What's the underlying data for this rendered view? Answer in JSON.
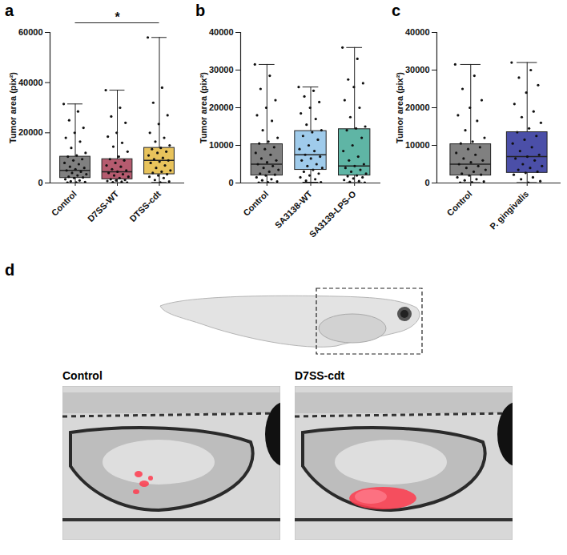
{
  "chart_data": [
    {
      "type": "box",
      "panel": "a",
      "y_label": "Tumor area (pix²)",
      "categories": [
        "Control",
        "D7SS-WT",
        "DTSS-cdt"
      ],
      "colors": [
        "#808080",
        "#b55b6f",
        "#e8c35c"
      ],
      "box": [
        {
          "min": 100,
          "q1": 2000,
          "median": 5000,
          "q3": 10500,
          "max": 31500
        },
        {
          "min": 100,
          "q1": 1500,
          "median": 4500,
          "q3": 9500,
          "max": 37000
        },
        {
          "min": 200,
          "q1": 3500,
          "median": 9000,
          "q3": 14000,
          "max": 58000
        }
      ],
      "values": [
        [
          31500,
          28500,
          25000,
          22000,
          20000,
          18000,
          16500,
          14000,
          12000,
          11000,
          10500,
          9500,
          9000,
          8000,
          7500,
          6500,
          6000,
          5500,
          5000,
          4500,
          4000,
          3500,
          3000,
          2500,
          2200,
          2000,
          1500,
          1000,
          700,
          400,
          200,
          100
        ],
        [
          37000,
          30000,
          26500,
          24000,
          20000,
          18500,
          16000,
          14500,
          12500,
          10500,
          9500,
          9000,
          8000,
          7000,
          6500,
          5500,
          5000,
          4500,
          4000,
          3500,
          3000,
          2500,
          2000,
          1500,
          1200,
          1000,
          800,
          500,
          300,
          100
        ],
        [
          58000,
          38000,
          32000,
          27000,
          23500,
          20000,
          18000,
          16500,
          15000,
          14000,
          13500,
          12500,
          12000,
          11000,
          10000,
          9500,
          9000,
          8500,
          8000,
          7000,
          6000,
          5000,
          4500,
          4000,
          3500,
          3000,
          2500,
          2000,
          1200,
          600,
          200
        ]
      ],
      "ylim": [
        0,
        60000
      ],
      "yticks": [
        0,
        20000,
        40000,
        60000
      ],
      "annotations": [
        {
          "text": "*",
          "from": "Control",
          "to": "DTSS-cdt"
        }
      ]
    },
    {
      "type": "box",
      "panel": "b",
      "y_label": "Tumor area (pix²)",
      "categories": [
        "Control",
        "SA3138-WT",
        "SA3139-LPS-O"
      ],
      "colors": [
        "#808080",
        "#9fcbeb",
        "#5fb5a5"
      ],
      "box": [
        {
          "min": 100,
          "q1": 2000,
          "median": 5000,
          "q3": 10300,
          "max": 31500
        },
        {
          "min": 200,
          "q1": 3500,
          "median": 7500,
          "q3": 13800,
          "max": 25500
        },
        {
          "min": 100,
          "q1": 2000,
          "median": 4500,
          "q3": 14300,
          "max": 36000
        }
      ],
      "values": [
        [
          31500,
          28500,
          25000,
          22000,
          20000,
          18000,
          16500,
          14000,
          12000,
          11000,
          10500,
          9500,
          9000,
          8000,
          7500,
          6500,
          6000,
          5500,
          5000,
          4500,
          4000,
          3500,
          3000,
          2500,
          2200,
          2000,
          1500,
          1000,
          700,
          400,
          200,
          100
        ],
        [
          25500,
          24500,
          23000,
          21500,
          20000,
          18500,
          17000,
          15500,
          14000,
          13500,
          12500,
          11500,
          10000,
          9000,
          8500,
          7500,
          7000,
          6500,
          6000,
          5000,
          4500,
          4000,
          3500,
          3000,
          2500,
          2000,
          1500,
          1000,
          600,
          200
        ],
        [
          36000,
          33000,
          27500,
          26500,
          25500,
          22000,
          20000,
          17500,
          15000,
          14500,
          14000,
          12000,
          10000,
          8500,
          7000,
          6000,
          5000,
          4500,
          4000,
          3500,
          3000,
          2500,
          2000,
          1800,
          1500,
          1200,
          800,
          500,
          300,
          100
        ]
      ],
      "ylim": [
        0,
        40000
      ],
      "yticks": [
        0,
        10000,
        20000,
        30000,
        40000
      ]
    },
    {
      "type": "box",
      "panel": "c",
      "y_label": "Tumor area (pix²)",
      "categories": [
        "Control",
        "P. gingivalis"
      ],
      "colors": [
        "#808080",
        "#4b4fa8"
      ],
      "box": [
        {
          "min": 100,
          "q1": 2000,
          "median": 5000,
          "q3": 10300,
          "max": 31500
        },
        {
          "min": 100,
          "q1": 2700,
          "median": 7000,
          "q3": 13500,
          "max": 32000
        }
      ],
      "values": [
        [
          31500,
          28500,
          25000,
          22000,
          20000,
          18000,
          16500,
          14000,
          12000,
          11000,
          10500,
          9500,
          9000,
          8000,
          7500,
          6500,
          6000,
          5500,
          5000,
          4500,
          4000,
          3500,
          3000,
          2500,
          2200,
          2000,
          1500,
          1000,
          700,
          400,
          200,
          100
        ],
        [
          32000,
          30000,
          28000,
          26000,
          24000,
          21000,
          19000,
          17500,
          16000,
          14500,
          13500,
          12500,
          11500,
          10500,
          9500,
          8500,
          7500,
          7000,
          6500,
          6000,
          5000,
          4500,
          4000,
          3500,
          3000,
          2700,
          2200,
          1500,
          1000,
          500,
          100
        ]
      ],
      "ylim": [
        0,
        40000
      ],
      "yticks": [
        0,
        10000,
        20000,
        30000,
        40000
      ]
    }
  ],
  "image_panel": {
    "panel": "d",
    "images": [
      {
        "label": "Control"
      },
      {
        "label": "D7SS-cdt"
      }
    ]
  }
}
